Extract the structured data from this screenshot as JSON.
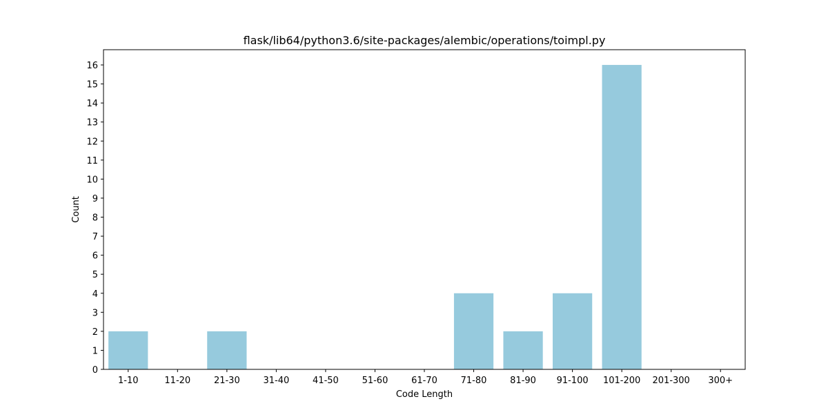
{
  "chart_data": {
    "type": "bar",
    "title": "flask/lib64/python3.6/site-packages/alembic/operations/toimpl.py",
    "xlabel": "Code Length",
    "ylabel": "Count",
    "categories": [
      "1-10",
      "11-20",
      "21-30",
      "31-40",
      "41-50",
      "51-60",
      "61-70",
      "71-80",
      "81-90",
      "91-100",
      "101-200",
      "201-300",
      "300+"
    ],
    "values": [
      2,
      0,
      2,
      0,
      0,
      0,
      0,
      4,
      2,
      4,
      16,
      0,
      0
    ],
    "ylim": [
      0,
      16.8
    ],
    "yticks": [
      0,
      1,
      2,
      3,
      4,
      5,
      6,
      7,
      8,
      9,
      10,
      11,
      12,
      13,
      14,
      15,
      16
    ],
    "grid": false,
    "bar_color": "#96cadd"
  }
}
